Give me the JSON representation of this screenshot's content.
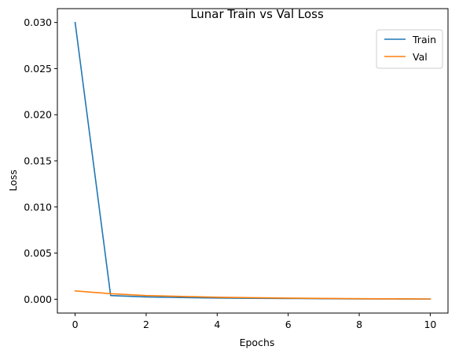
{
  "chart_data": {
    "type": "line",
    "title": "Lunar Train vs Val Loss",
    "xlabel": "Epochs",
    "ylabel": "Loss",
    "xlim": [
      -0.5,
      10.5
    ],
    "ylim": [
      -0.0015,
      0.0315
    ],
    "xticks": [
      0,
      2,
      4,
      6,
      8,
      10
    ],
    "yticks": [
      0.0,
      0.005,
      0.01,
      0.015,
      0.02,
      0.025,
      0.03
    ],
    "xtick_labels": [
      "0",
      "2",
      "4",
      "6",
      "8",
      "10"
    ],
    "ytick_labels": [
      "0.000",
      "0.005",
      "0.010",
      "0.015",
      "0.020",
      "0.025",
      "0.030"
    ],
    "grid": false,
    "legend_position": "top-right",
    "x": [
      0,
      1,
      2,
      3,
      4,
      5,
      6,
      7,
      8,
      9,
      10
    ],
    "series": [
      {
        "name": "Train",
        "color": "#1f77b4",
        "values": [
          0.03,
          0.0004,
          0.00025,
          0.00018,
          0.00013,
          0.0001,
          8e-05,
          6e-05,
          4e-05,
          3e-05,
          2e-05
        ]
      },
      {
        "name": "Val",
        "color": "#ff7f0e",
        "values": [
          0.0009,
          0.0006,
          0.0004,
          0.0003,
          0.00022,
          0.00016,
          0.00012,
          9e-05,
          6e-05,
          4e-05,
          3e-05
        ]
      }
    ]
  }
}
